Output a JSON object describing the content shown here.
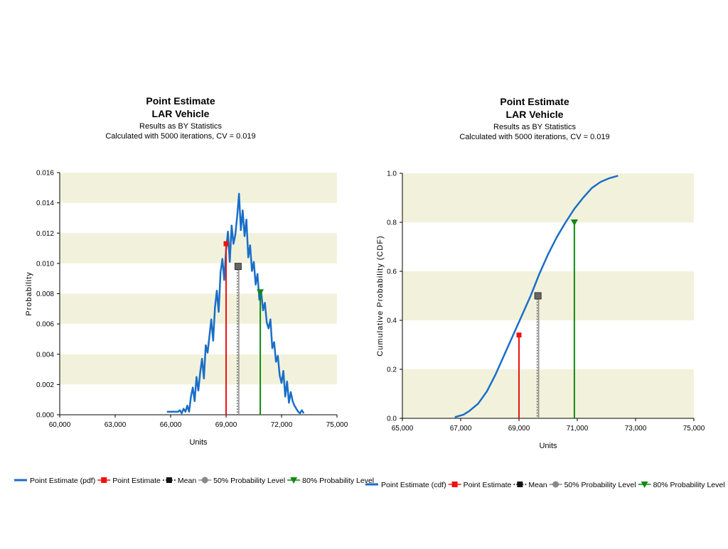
{
  "chart_data": [
    {
      "type": "line",
      "title": [
        "Point Estimate",
        "LAR Vehicle"
      ],
      "subtitle": [
        "Results as BY Statistics",
        "Calculated with 5000 iterations, CV = 0.019"
      ],
      "xlabel": "Units",
      "ylabel": "Probability",
      "xlim": [
        60000,
        75000
      ],
      "ylim": [
        0,
        0.016
      ],
      "x_ticks": [
        60000,
        63000,
        66000,
        69000,
        72000,
        75000
      ],
      "x_tick_labels": [
        "60,000",
        "63,000",
        "66,000",
        "69,000",
        "72,000",
        "75,000"
      ],
      "y_ticks": [
        0,
        0.002,
        0.004,
        0.006,
        0.008,
        0.01,
        0.012,
        0.014,
        0.016
      ],
      "y_tick_labels": [
        "0.000",
        "0.002",
        "0.004",
        "0.006",
        "0.008",
        "0.010",
        "0.012",
        "0.014",
        "0.016"
      ],
      "grid": "alternating horizontal bands",
      "band_color": "#f2f2dc",
      "series": [
        {
          "name": "Point Estimate (pdf)",
          "color": "#1a6ec8",
          "x": [
            65800,
            66400,
            66500,
            66600,
            66700,
            66800,
            66900,
            67000,
            67100,
            67200,
            67300,
            67400,
            67500,
            67600,
            67700,
            67800,
            67900,
            68000,
            68100,
            68200,
            68300,
            68400,
            68500,
            68600,
            68700,
            68800,
            68900,
            69000,
            69100,
            69200,
            69300,
            69400,
            69500,
            69600,
            69700,
            69800,
            69900,
            70000,
            70100,
            70200,
            70300,
            70400,
            70500,
            70600,
            70700,
            70800,
            70900,
            71000,
            71100,
            71200,
            71300,
            71400,
            71500,
            71600,
            71700,
            71800,
            71900,
            72000,
            72100,
            72200,
            72300,
            72400,
            72500,
            72600,
            72700,
            72800,
            72900,
            73000,
            73100,
            73200
          ],
          "y": [
            0.0002,
            0.0002,
            0.0003,
            0.0001,
            0.0004,
            0.0002,
            0.0006,
            0.0002,
            0.0012,
            0.0018,
            0.0009,
            0.0025,
            0.0016,
            0.0028,
            0.0037,
            0.0024,
            0.0046,
            0.0041,
            0.0052,
            0.0063,
            0.0049,
            0.0071,
            0.0082,
            0.0068,
            0.0094,
            0.0103,
            0.0089,
            0.0109,
            0.0121,
            0.0101,
            0.0125,
            0.0113,
            0.0119,
            0.0131,
            0.0146,
            0.0122,
            0.0135,
            0.0118,
            0.0129,
            0.0104,
            0.0112,
            0.0095,
            0.0101,
            0.0086,
            0.0093,
            0.0076,
            0.0081,
            0.0069,
            0.0074,
            0.0061,
            0.0057,
            0.0063,
            0.0044,
            0.0048,
            0.0035,
            0.0039,
            0.0026,
            0.0021,
            0.0029,
            0.0012,
            0.0022,
            0.0008,
            0.0015,
            0.0009,
            0.0006,
            0.0004,
            0.0002,
            0.0001,
            0.0003,
            0.0001
          ]
        }
      ],
      "markers": [
        {
          "name": "Point Estimate",
          "x": 69000,
          "y": 0.0113,
          "shape": "square",
          "color": "#ee1111",
          "line": "solid"
        },
        {
          "name": "Mean",
          "x": 69650,
          "y": 0.0098,
          "shape": "square",
          "color": "#666666",
          "line": "dashed"
        },
        {
          "name": "80% Probability Level",
          "x": 70850,
          "y": 0.0081,
          "shape": "triangle-down",
          "color": "#118811",
          "line": "solid"
        }
      ],
      "legend": {
        "position": "bottom",
        "items": [
          {
            "label": "Point Estimate (pdf)",
            "type": "line",
            "color": "#1a6ec8"
          },
          {
            "label": "Point Estimate",
            "type": "square",
            "color": "#ee1111"
          },
          {
            "label": "Mean",
            "type": "square-dotted",
            "color": "#111111"
          },
          {
            "label": "50% Probability Level",
            "type": "circle",
            "color": "#888888"
          },
          {
            "label": "80% Probability Level",
            "type": "triangle-down",
            "color": "#118811"
          }
        ]
      }
    },
    {
      "type": "line",
      "title": [
        "Point Estimate",
        "LAR Vehicle"
      ],
      "subtitle": [
        "Results as BY Statistics",
        "Calculated with 5000 iterations, CV = 0.019"
      ],
      "xlabel": "Units",
      "ylabel": "Cumulative Probability (CDF)",
      "xlim": [
        65000,
        75000
      ],
      "ylim": [
        0,
        1
      ],
      "x_ticks": [
        65000,
        67000,
        69000,
        71000,
        73000,
        75000
      ],
      "x_tick_labels": [
        "65,000",
        "67,000",
        "69,000",
        "71,000",
        "73,000",
        "75,000"
      ],
      "y_ticks": [
        0,
        0.2,
        0.4,
        0.6,
        0.8,
        1
      ],
      "y_tick_labels": [
        "0.0",
        "0.2",
        "0.4",
        "0.6",
        "0.8",
        "1.0"
      ],
      "grid": "alternating horizontal bands",
      "band_color": "#f2f2dc",
      "series": [
        {
          "name": "Point Estimate (cdf)",
          "color": "#1a6ec8",
          "x": [
            66800,
            67100,
            67300,
            67600,
            67900,
            68200,
            68500,
            68800,
            69100,
            69400,
            69700,
            70000,
            70300,
            70600,
            70900,
            71200,
            71500,
            71800,
            72100,
            72400
          ],
          "y": [
            0.005,
            0.015,
            0.03,
            0.06,
            0.11,
            0.18,
            0.26,
            0.34,
            0.42,
            0.5,
            0.59,
            0.67,
            0.74,
            0.8,
            0.855,
            0.9,
            0.94,
            0.965,
            0.98,
            0.99
          ]
        }
      ],
      "markers": [
        {
          "name": "Point Estimate",
          "x": 69000,
          "y": 0.34,
          "shape": "square",
          "color": "#ee1111",
          "line": "solid"
        },
        {
          "name": "Mean",
          "x": 69650,
          "y": 0.5,
          "shape": "square",
          "color": "#666666",
          "line": "dashed"
        },
        {
          "name": "80% Probability Level",
          "x": 70900,
          "y": 0.8,
          "shape": "triangle-down",
          "color": "#118811",
          "line": "solid"
        }
      ],
      "legend": {
        "position": "bottom",
        "items": [
          {
            "label": "Point Estimate (cdf)",
            "type": "line",
            "color": "#1a6ec8"
          },
          {
            "label": "Point Estimate",
            "type": "square",
            "color": "#ee1111"
          },
          {
            "label": "Mean",
            "type": "square-dotted",
            "color": "#111111"
          },
          {
            "label": "50% Probability Level",
            "type": "circle",
            "color": "#888888"
          },
          {
            "label": "80% Probability Level",
            "type": "triangle-down",
            "color": "#118811"
          }
        ]
      }
    }
  ]
}
